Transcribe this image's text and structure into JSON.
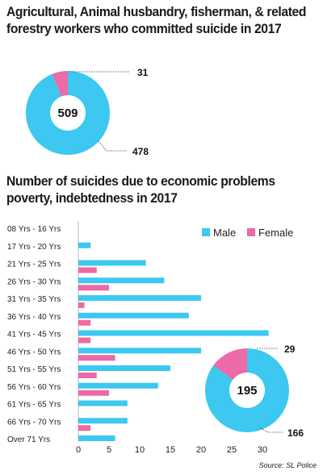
{
  "title1": "Agricultural, Animal husbandry, fisherman, & related forestry workers who committed suicide in 2017",
  "title2": "Number of suicides due to economic problems poverty, indebtedness in 2017",
  "source": "Source: SL Police",
  "colors": {
    "male": "#3cc8f0",
    "female": "#ec6aa5"
  },
  "chart_data": [
    {
      "type": "pie",
      "title": "Agricultural, Animal husbandry, fisherman, & related forestry workers who committed suicide in 2017",
      "total": 509,
      "slices": [
        {
          "name": "Male",
          "value": 478
        },
        {
          "name": "Female",
          "value": 31
        }
      ]
    },
    {
      "type": "bar",
      "title": "Number of suicides due to economic problems poverty, indebtedness in 2017",
      "orientation": "horizontal",
      "categories": [
        "08 Yrs - 16 Yrs",
        "17 Yrs - 20 Yrs",
        "21 Yrs - 25 Yrs",
        "26 Yrs - 30 Yrs",
        "31 Yrs - 35 Yrs",
        "36 Yrs - 40 Yrs",
        "41 Yrs - 45 Yrs",
        "46 Yrs - 50 Yrs",
        "51 Yrs - 55 Yrs",
        "56 Yrs - 60 Yrs",
        "61 Yrs - 65 Yrs",
        "66 Yrs - 70 Yrs",
        "Over 71 Yrs"
      ],
      "series": [
        {
          "name": "Male",
          "values": [
            0,
            2,
            11,
            14,
            20,
            18,
            31,
            20,
            15,
            13,
            8,
            8,
            6
          ]
        },
        {
          "name": "Female",
          "values": [
            0,
            0,
            3,
            5,
            1,
            2,
            2,
            6,
            3,
            5,
            0,
            2,
            0
          ]
        }
      ],
      "xlim": [
        0,
        30
      ],
      "xticks": [
        0,
        5,
        10,
        15,
        20,
        25,
        30
      ],
      "legend": "top-right"
    },
    {
      "type": "pie",
      "total": 195,
      "slices": [
        {
          "name": "Male",
          "value": 166
        },
        {
          "name": "Female",
          "value": 29
        }
      ]
    }
  ]
}
